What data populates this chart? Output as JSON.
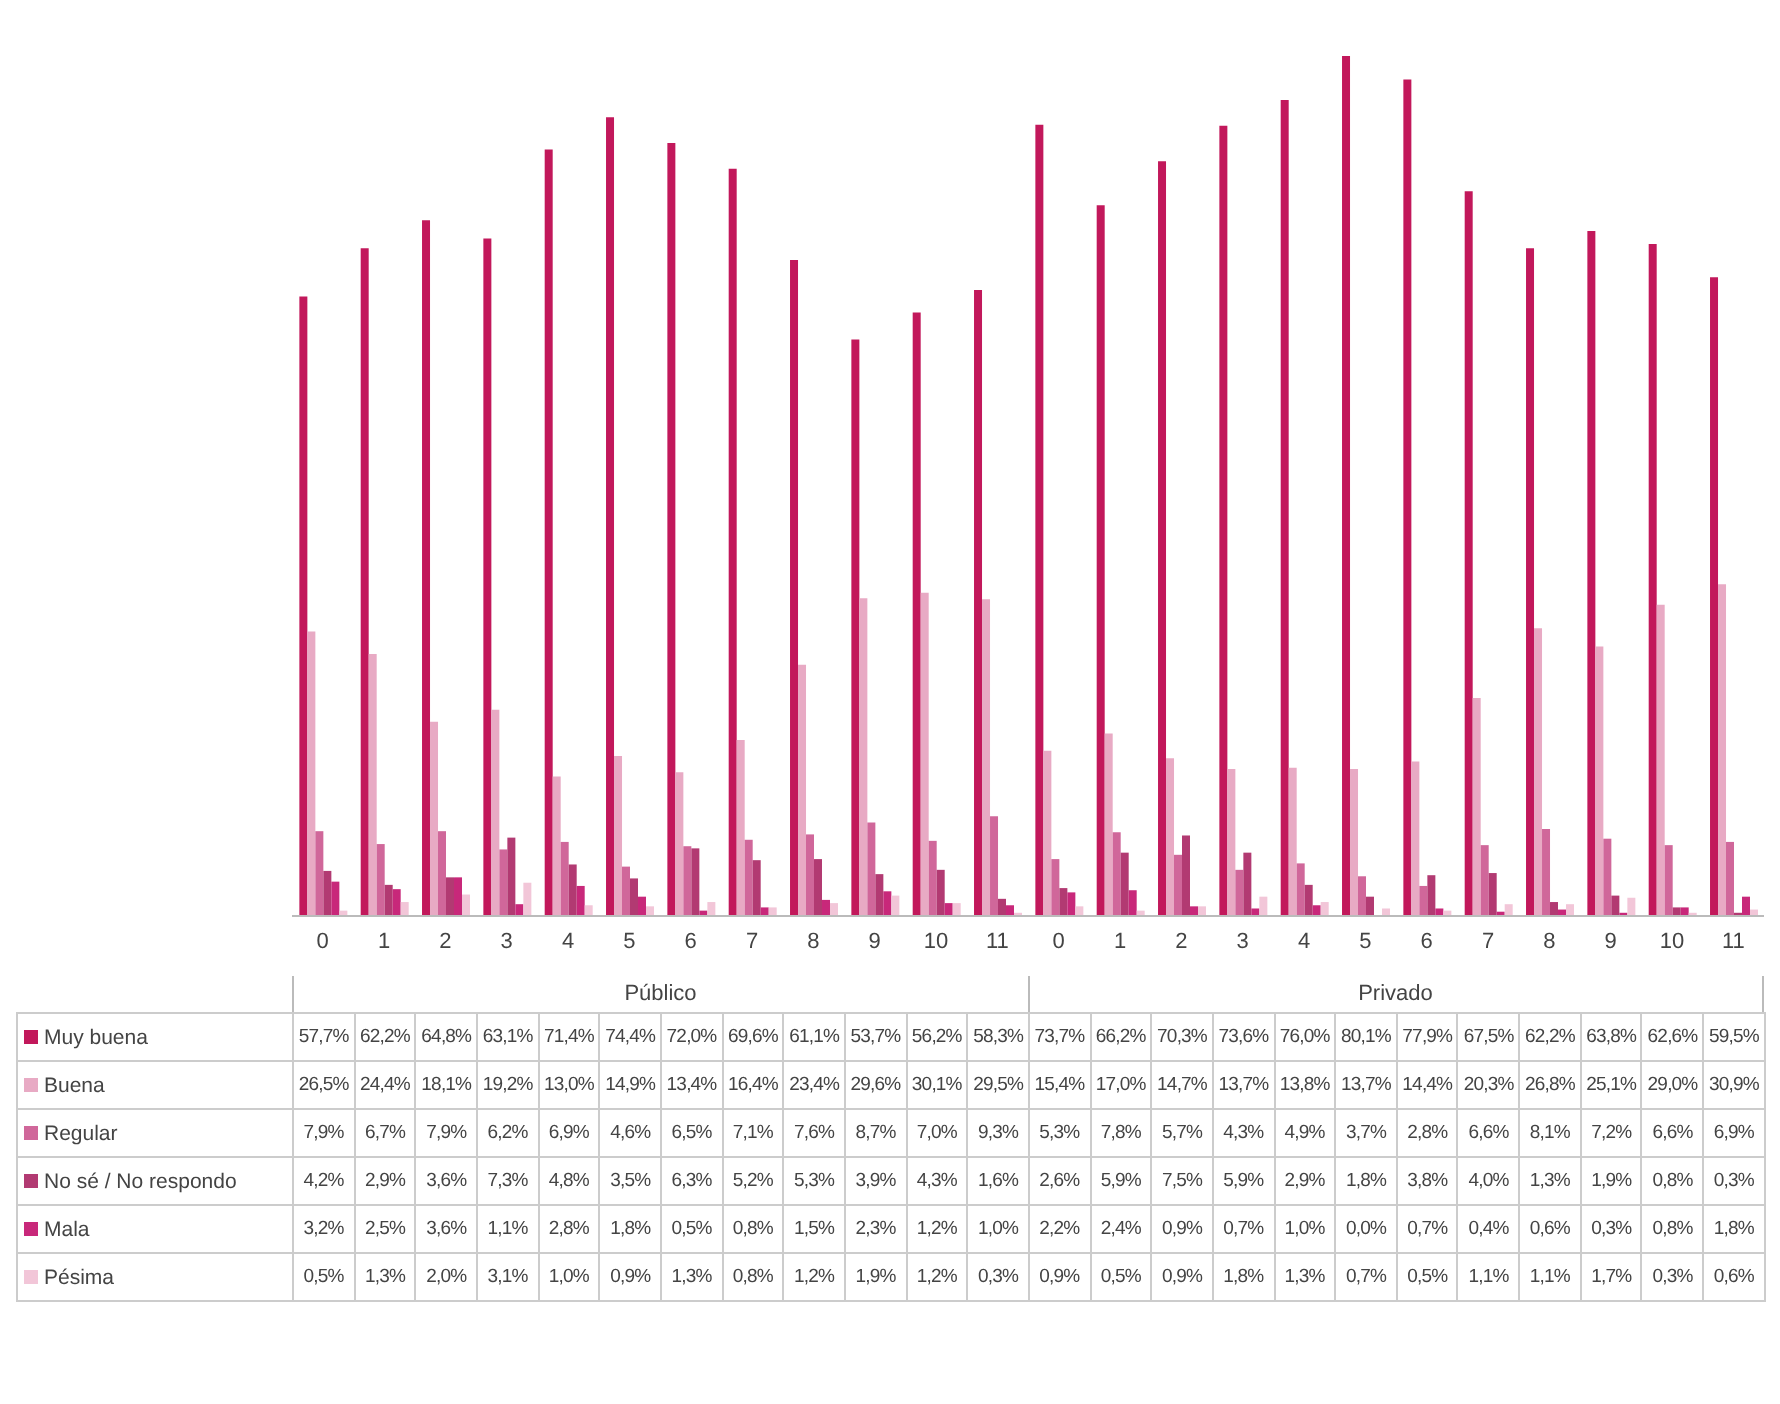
{
  "chart_data": {
    "type": "bar",
    "categories": [
      "0",
      "1",
      "2",
      "3",
      "4",
      "5",
      "6",
      "7",
      "8",
      "9",
      "10",
      "11",
      "0",
      "1",
      "2",
      "3",
      "4",
      "5",
      "6",
      "7",
      "8",
      "9",
      "10",
      "11"
    ],
    "annotations": [
      "Público",
      "Privado"
    ],
    "legend": "bottom",
    "series": [
      {
        "name": "Muy buena",
        "color": "#c2185b",
        "values": [
          57.7,
          62.2,
          64.8,
          63.1,
          71.4,
          74.4,
          72.0,
          69.6,
          61.1,
          53.7,
          56.2,
          58.3,
          73.7,
          66.2,
          70.3,
          73.6,
          76.0,
          80.1,
          77.9,
          67.5,
          62.2,
          63.8,
          62.6,
          59.5
        ],
        "value_labels": [
          "57,7%",
          "62,2%",
          "64,8%",
          "63,1%",
          "71,4%",
          "74,4%",
          "72,0%",
          "69,6%",
          "61,1%",
          "53,7%",
          "56,2%",
          "58,3%",
          "73,7%",
          "66,2%",
          "70,3%",
          "73,6%",
          "76,0%",
          "80,1%",
          "77,9%",
          "67,5%",
          "62,2%",
          "63,8%",
          "62,6%",
          "59,5%"
        ]
      },
      {
        "name": "Buena",
        "color": "#e8aac4",
        "values": [
          26.5,
          24.4,
          18.1,
          19.2,
          13.0,
          14.9,
          13.4,
          16.4,
          23.4,
          29.6,
          30.1,
          29.5,
          15.4,
          17.0,
          14.7,
          13.7,
          13.8,
          13.7,
          14.4,
          20.3,
          26.8,
          25.1,
          29.0,
          30.9
        ],
        "value_labels": [
          "26,5%",
          "24,4%",
          "18,1%",
          "19,2%",
          "13,0%",
          "14,9%",
          "13,4%",
          "16,4%",
          "23,4%",
          "29,6%",
          "30,1%",
          "29,5%",
          "15,4%",
          "17,0%",
          "14,7%",
          "13,7%",
          "13,8%",
          "13,7%",
          "14,4%",
          "20,3%",
          "26,8%",
          "25,1%",
          "29,0%",
          "30,9%"
        ]
      },
      {
        "name": "Regular",
        "color": "#d0679a",
        "values": [
          7.9,
          6.7,
          7.9,
          6.2,
          6.9,
          4.6,
          6.5,
          7.1,
          7.6,
          8.7,
          7.0,
          9.3,
          5.3,
          7.8,
          5.7,
          4.3,
          4.9,
          3.7,
          2.8,
          6.6,
          8.1,
          7.2,
          6.6,
          6.9
        ],
        "value_labels": [
          "7,9%",
          "6,7%",
          "7,9%",
          "6,2%",
          "6,9%",
          "4,6%",
          "6,5%",
          "7,1%",
          "7,6%",
          "8,7%",
          "7,0%",
          "9,3%",
          "5,3%",
          "7,8%",
          "5,7%",
          "4,3%",
          "4,9%",
          "3,7%",
          "2,8%",
          "6,6%",
          "8,1%",
          "7,2%",
          "6,6%",
          "6,9%"
        ]
      },
      {
        "name": "No sé / No respondo",
        "color": "#b23a72",
        "values": [
          4.2,
          2.9,
          3.6,
          7.3,
          4.8,
          3.5,
          6.3,
          5.2,
          5.3,
          3.9,
          4.3,
          1.6,
          2.6,
          5.9,
          7.5,
          5.9,
          2.9,
          1.8,
          3.8,
          4.0,
          1.3,
          1.9,
          0.8,
          0.3
        ],
        "value_labels": [
          "4,2%",
          "2,9%",
          "3,6%",
          "7,3%",
          "4,8%",
          "3,5%",
          "6,3%",
          "5,2%",
          "5,3%",
          "3,9%",
          "4,3%",
          "1,6%",
          "2,6%",
          "5,9%",
          "7,5%",
          "5,9%",
          "2,9%",
          "1,8%",
          "3,8%",
          "4,0%",
          "1,3%",
          "1,9%",
          "0,8%",
          "0,3%"
        ]
      },
      {
        "name": "Mala",
        "color": "#c8287a",
        "values": [
          3.2,
          2.5,
          3.6,
          1.1,
          2.8,
          1.8,
          0.5,
          0.8,
          1.5,
          2.3,
          1.2,
          1.0,
          2.2,
          2.4,
          0.9,
          0.7,
          1.0,
          0.0,
          0.7,
          0.4,
          0.6,
          0.3,
          0.8,
          1.8
        ],
        "value_labels": [
          "3,2%",
          "2,5%",
          "3,6%",
          "1,1%",
          "2,8%",
          "1,8%",
          "0,5%",
          "0,8%",
          "1,5%",
          "2,3%",
          "1,2%",
          "1,0%",
          "2,2%",
          "2,4%",
          "0,9%",
          "0,7%",
          "1,0%",
          "0,0%",
          "0,7%",
          "0,4%",
          "0,6%",
          "0,3%",
          "0,8%",
          "1,8%"
        ]
      },
      {
        "name": "Pésima",
        "color": "#f2c6d8",
        "values": [
          0.5,
          1.3,
          2.0,
          3.1,
          1.0,
          0.9,
          1.3,
          0.8,
          1.2,
          1.9,
          1.2,
          0.3,
          0.9,
          0.5,
          0.9,
          1.8,
          1.3,
          0.7,
          0.5,
          1.1,
          1.1,
          1.7,
          0.3,
          0.6
        ],
        "value_labels": [
          "0,5%",
          "1,3%",
          "2,0%",
          "3,1%",
          "1,0%",
          "0,9%",
          "1,3%",
          "0,8%",
          "1,2%",
          "1,9%",
          "1,2%",
          "0,3%",
          "0,9%",
          "0,5%",
          "0,9%",
          "1,8%",
          "1,3%",
          "0,7%",
          "0,5%",
          "1,1%",
          "1,1%",
          "1,7%",
          "0,3%",
          "0,6%"
        ]
      }
    ]
  }
}
